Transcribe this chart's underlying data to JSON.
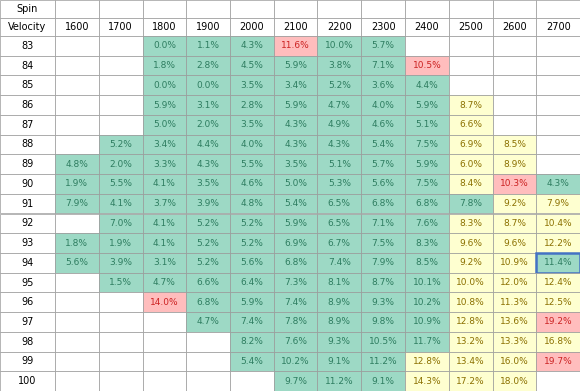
{
  "spin_values": [
    1600,
    1700,
    1800,
    1900,
    2000,
    2100,
    2200,
    2300,
    2400,
    2500,
    2600,
    2700
  ],
  "velocity_values": [
    83,
    84,
    85,
    86,
    87,
    88,
    89,
    90,
    91,
    92,
    93,
    94,
    95,
    96,
    97,
    98,
    99,
    100
  ],
  "data": {
    "83": {
      "1800": "0.0%",
      "1900": "1.1%",
      "2000": "4.3%",
      "2100": "11.6%",
      "2200": "10.0%",
      "2300": "5.7%"
    },
    "84": {
      "1800": "1.8%",
      "1900": "2.8%",
      "2000": "4.5%",
      "2100": "5.9%",
      "2200": "3.8%",
      "2300": "7.1%",
      "2400": "10.5%"
    },
    "85": {
      "1800": "0.0%",
      "1900": "0.0%",
      "2000": "3.5%",
      "2100": "3.4%",
      "2200": "5.2%",
      "2300": "3.6%",
      "2400": "4.4%"
    },
    "86": {
      "1800": "5.9%",
      "1900": "3.1%",
      "2000": "2.8%",
      "2100": "5.9%",
      "2200": "4.7%",
      "2300": "4.0%",
      "2400": "5.9%",
      "2500": "8.7%"
    },
    "87": {
      "1800": "5.0%",
      "1900": "2.0%",
      "2000": "3.5%",
      "2100": "4.3%",
      "2200": "4.9%",
      "2300": "4.6%",
      "2400": "5.1%",
      "2500": "6.6%"
    },
    "88": {
      "1700": "5.2%",
      "1800": "3.4%",
      "1900": "4.4%",
      "2000": "4.0%",
      "2100": "4.3%",
      "2200": "4.3%",
      "2300": "5.4%",
      "2400": "7.5%",
      "2500": "6.9%",
      "2600": "8.5%"
    },
    "89": {
      "1600": "4.8%",
      "1700": "2.0%",
      "1800": "3.3%",
      "1900": "4.3%",
      "2000": "5.5%",
      "2100": "3.5%",
      "2200": "5.1%",
      "2300": "5.7%",
      "2400": "5.9%",
      "2500": "6.0%",
      "2600": "8.9%"
    },
    "90": {
      "1600": "1.9%",
      "1700": "5.5%",
      "1800": "4.1%",
      "1900": "3.5%",
      "2000": "4.6%",
      "2100": "5.0%",
      "2200": "5.3%",
      "2300": "5.6%",
      "2400": "7.5%",
      "2500": "8.4%",
      "2600": "10.3%",
      "2700": "4.3%"
    },
    "91": {
      "1600": "7.9%",
      "1700": "4.1%",
      "1800": "3.7%",
      "1900": "3.9%",
      "2000": "4.8%",
      "2100": "5.4%",
      "2200": "6.5%",
      "2300": "6.8%",
      "2400": "6.8%",
      "2500": "7.8%",
      "2600": "9.2%",
      "2700": "7.9%"
    },
    "92": {
      "1700": "7.0%",
      "1800": "4.1%",
      "1900": "5.2%",
      "2000": "5.2%",
      "2100": "5.9%",
      "2200": "6.5%",
      "2300": "7.1%",
      "2400": "7.6%",
      "2500": "8.3%",
      "2600": "8.7%",
      "2700": "10.4%"
    },
    "93": {
      "1600": "1.8%",
      "1700": "1.9%",
      "1800": "4.1%",
      "1900": "5.2%",
      "2000": "5.2%",
      "2100": "6.9%",
      "2200": "6.7%",
      "2300": "7.5%",
      "2400": "8.3%",
      "2500": "9.6%",
      "2600": "9.6%",
      "2700": "12.2%"
    },
    "94": {
      "1600": "5.6%",
      "1700": "3.9%",
      "1800": "3.1%",
      "1900": "5.2%",
      "2000": "5.6%",
      "2100": "6.8%",
      "2200": "7.4%",
      "2300": "7.9%",
      "2400": "8.5%",
      "2500": "9.2%",
      "2600": "10.9%",
      "2700": "11.4%"
    },
    "95": {
      "1700": "1.5%",
      "1800": "4.7%",
      "1900": "6.6%",
      "2000": "6.4%",
      "2100": "7.3%",
      "2200": "8.1%",
      "2300": "8.7%",
      "2400": "10.1%",
      "2500": "10.0%",
      "2600": "12.0%",
      "2700": "12.4%"
    },
    "96": {
      "1800": "14.0%",
      "1900": "6.8%",
      "2000": "5.9%",
      "2100": "7.4%",
      "2200": "8.9%",
      "2300": "9.3%",
      "2400": "10.2%",
      "2500": "10.8%",
      "2600": "11.3%",
      "2700": "12.5%"
    },
    "97": {
      "1900": "4.7%",
      "2000": "7.4%",
      "2100": "7.8%",
      "2200": "8.9%",
      "2300": "9.8%",
      "2400": "10.9%",
      "2500": "12.8%",
      "2600": "13.6%",
      "2700": "19.2%"
    },
    "98": {
      "2000": "8.2%",
      "2100": "7.6%",
      "2200": "9.3%",
      "2300": "10.5%",
      "2400": "11.7%",
      "2500": "13.2%",
      "2600": "13.3%",
      "2700": "16.8%"
    },
    "99": {
      "2000": "5.4%",
      "2100": "10.2%",
      "2200": "9.1%",
      "2300": "11.2%",
      "2400": "12.8%",
      "2500": "13.4%",
      "2600": "16.0%",
      "2700": "19.7%"
    },
    "100": {
      "2100": "9.7%",
      "2200": "11.2%",
      "2300": "9.1%",
      "2400": "14.3%",
      "2500": "17.2%",
      "2600": "18.0%"
    }
  },
  "pink_cells": [
    "83_2100",
    "84_2400",
    "90_2600",
    "96_1800",
    "97_2700",
    "99_2700"
  ],
  "yellow_cells": [
    "86_2500",
    "87_2500",
    "88_2500",
    "88_2600",
    "89_2500",
    "89_2600",
    "90_2500",
    "91_2600",
    "91_2700",
    "92_2500",
    "92_2600",
    "92_2700",
    "93_2500",
    "93_2600",
    "93_2700",
    "94_2500",
    "94_2600",
    "95_2500",
    "95_2600",
    "95_2700",
    "96_2500",
    "96_2600",
    "96_2700",
    "97_2500",
    "97_2600",
    "98_2500",
    "98_2600",
    "98_2700",
    "99_2400",
    "99_2500",
    "99_2600",
    "100_2400",
    "100_2500",
    "100_2600"
  ],
  "blue_outline_cells": [
    "94_2700"
  ],
  "teal_color": "#9DD9C5",
  "yellow_color": "#FEFFD0",
  "pink_color": "#FFBDBD",
  "blue_outline_color": "#4472C4",
  "teal_text": "#2E7D60",
  "yellow_text": "#8B7000",
  "pink_text": "#CC2222",
  "default_text": "#000000"
}
